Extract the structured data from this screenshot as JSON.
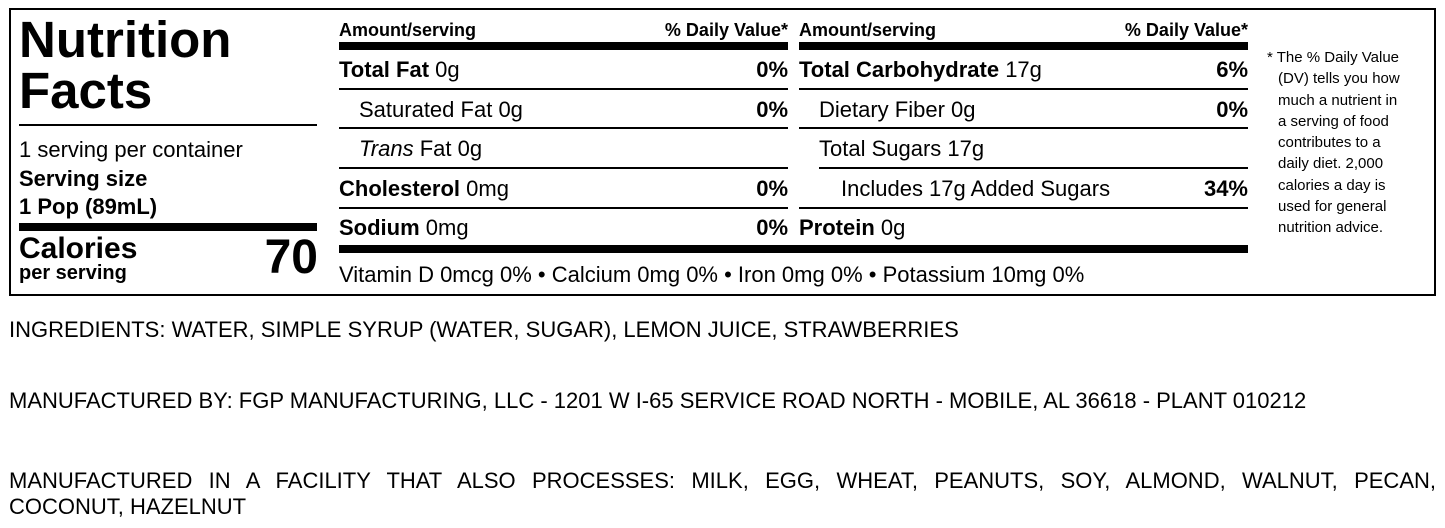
{
  "title": {
    "line1": "Nutrition",
    "line2": "Facts"
  },
  "servings": "1 serving per container",
  "serving_size": {
    "label": "Serving size",
    "value": "1 Pop (89mL)"
  },
  "calories": {
    "label": "Calories",
    "sub": "per serving",
    "value": "70"
  },
  "headers": {
    "amount": "Amount/serving",
    "dv": "% Daily Value*"
  },
  "left_column": [
    {
      "name": "Total Fat",
      "amount": "0g",
      "dv": "0%"
    },
    {
      "name": "Saturated Fat",
      "amount": "0g",
      "dv": "0%"
    },
    {
      "name": "Trans",
      "suffix": "Fat",
      "amount": "0g",
      "dv": ""
    },
    {
      "name": "Cholesterol",
      "amount": "0mg",
      "dv": "0%"
    },
    {
      "name": "Sodium",
      "amount": "0mg",
      "dv": "0%"
    }
  ],
  "right_column": [
    {
      "name": "Total Carbohydrate",
      "amount": "17g",
      "dv": "6%"
    },
    {
      "name": "Dietary Fiber",
      "amount": "0g",
      "dv": "0%"
    },
    {
      "name": "Total Sugars",
      "amount": "17g",
      "dv": ""
    },
    {
      "name": "Includes 17g Added Sugars",
      "amount": "",
      "dv": "34%"
    },
    {
      "name": "Protein",
      "amount": "0g",
      "dv": ""
    }
  ],
  "vitamins": "Vitamin D 0mcg 0% • Calcium 0mg 0% • Iron 0mg 0% • Potassium 10mg 0%",
  "footnote": [
    "* The % Daily Value",
    "(DV) tells you how",
    "much a nutrient in",
    "a serving of food",
    "contributes to a",
    "daily diet. 2,000",
    "calories a day is",
    "used for general",
    "nutrition advice."
  ],
  "ingredients": "INGREDIENTS: WATER, SIMPLE SYRUP (WATER, SUGAR), LEMON JUICE, STRAWBERRIES",
  "manufacturer": "MANUFACTURED BY: FGP MANUFACTURING, LLC - 1201 W I-65 SERVICE ROAD NORTH - MOBILE, AL 36618 - PLANT 010212",
  "facility": {
    "line1": "MANUFACTURED IN A FACILITY THAT ALSO PROCESSES: MILK, EGG, WHEAT, PEANUTS, SOY, ALMOND, WALNUT, PECAN,",
    "line2": "COCONUT, HAZELNUT"
  }
}
